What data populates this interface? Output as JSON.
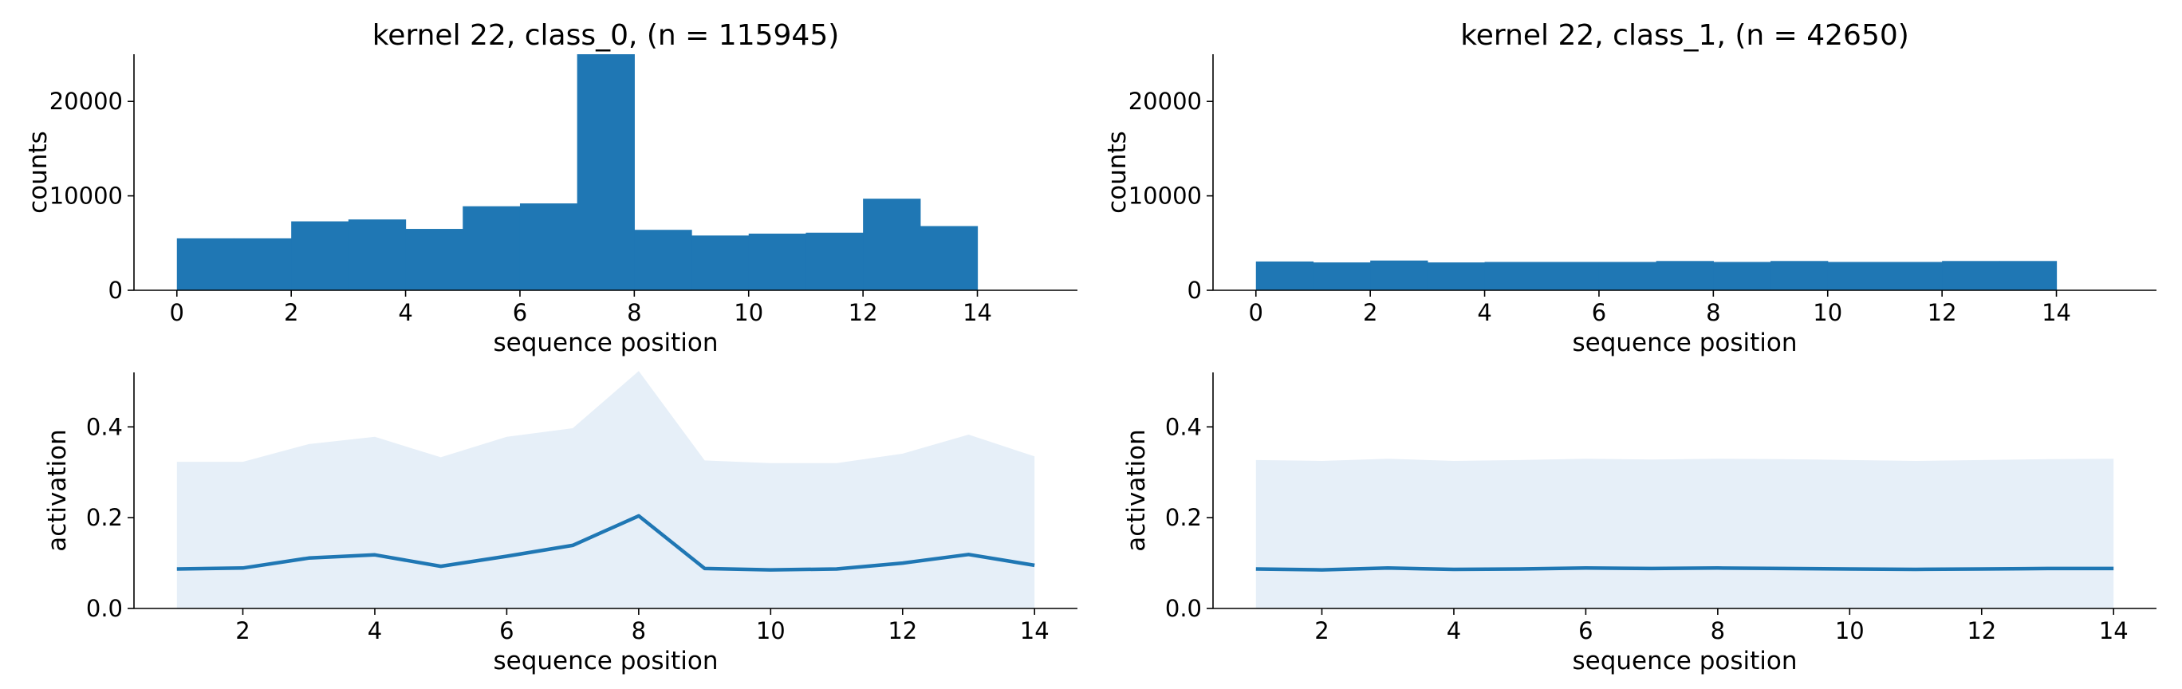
{
  "style": {
    "bar_color": "#1f77b4",
    "line_color": "#1f77b4",
    "band_color": "#e6eff8"
  },
  "chart_data": [
    {
      "type": "bar",
      "title": "kernel 22, class_0, (n = 115945)",
      "xlabel": "sequence position",
      "ylabel": "counts",
      "xlim": [
        -0.75,
        15.75
      ],
      "ylim": [
        0,
        25000
      ],
      "xticks": [
        "0",
        "2",
        "4",
        "6",
        "8",
        "10",
        "12",
        "14"
      ],
      "xtick_values": [
        0,
        2,
        4,
        6,
        8,
        10,
        12,
        14
      ],
      "yticks": [
        "0",
        "10000",
        "20000"
      ],
      "ytick_values": [
        0,
        10000,
        20000
      ],
      "bin_edges": [
        0,
        1,
        2,
        3,
        4,
        5,
        6,
        7,
        8,
        9,
        10,
        11,
        12,
        13,
        14
      ],
      "values": [
        5500,
        5500,
        7300,
        7500,
        6500,
        8900,
        9200,
        25000,
        6400,
        5800,
        6000,
        6100,
        9700,
        6800
      ]
    },
    {
      "type": "bar",
      "title": "kernel 22, class_1, (n = 42650)",
      "xlabel": "sequence position",
      "ylabel": "counts",
      "xlim": [
        -0.75,
        15.75
      ],
      "ylim": [
        0,
        25000
      ],
      "xticks": [
        "0",
        "2",
        "4",
        "6",
        "8",
        "10",
        "12",
        "14"
      ],
      "xtick_values": [
        0,
        2,
        4,
        6,
        8,
        10,
        12,
        14
      ],
      "yticks": [
        "0",
        "10000",
        "20000"
      ],
      "ytick_values": [
        0,
        10000,
        20000
      ],
      "bin_edges": [
        0,
        1,
        2,
        3,
        4,
        5,
        6,
        7,
        8,
        9,
        10,
        11,
        12,
        13,
        14
      ],
      "values": [
        3050,
        2950,
        3150,
        2950,
        3000,
        3000,
        3000,
        3100,
        3000,
        3100,
        3000,
        3000,
        3100,
        3100
      ]
    },
    {
      "type": "area",
      "title": "",
      "xlabel": "sequence position",
      "ylabel": "activation",
      "xlim": [
        0.35,
        14.65
      ],
      "ylim": [
        0,
        0.52
      ],
      "xticks": [
        "2",
        "4",
        "6",
        "8",
        "10",
        "12",
        "14"
      ],
      "xtick_values": [
        2,
        4,
        6,
        8,
        10,
        12,
        14
      ],
      "yticks": [
        "0.0",
        "0.2",
        "0.4"
      ],
      "ytick_values": [
        0,
        0.2,
        0.4
      ],
      "x": [
        1,
        2,
        3,
        4,
        5,
        6,
        7,
        8,
        9,
        10,
        11,
        12,
        13,
        14
      ],
      "series": [
        {
          "values": [
            0.087,
            0.089,
            0.111,
            0.118,
            0.093,
            0.115,
            0.139,
            0.204,
            0.088,
            0.085,
            0.087,
            0.1,
            0.119,
            0.095
          ]
        }
      ],
      "band_lower": [
        0,
        0,
        0,
        0,
        0,
        0,
        0,
        0,
        0,
        0,
        0,
        0,
        0,
        0
      ],
      "band_upper": [
        0.323,
        0.323,
        0.362,
        0.378,
        0.333,
        0.378,
        0.397,
        0.523,
        0.326,
        0.32,
        0.32,
        0.341,
        0.383,
        0.335
      ]
    },
    {
      "type": "area",
      "title": "",
      "xlabel": "sequence position",
      "ylabel": "activation",
      "xlim": [
        0.35,
        14.65
      ],
      "ylim": [
        0,
        0.52
      ],
      "xticks": [
        "2",
        "4",
        "6",
        "8",
        "10",
        "12",
        "14"
      ],
      "xtick_values": [
        2,
        4,
        6,
        8,
        10,
        12,
        14
      ],
      "yticks": [
        "0.0",
        "0.2",
        "0.4"
      ],
      "ytick_values": [
        0,
        0.2,
        0.4
      ],
      "x": [
        1,
        2,
        3,
        4,
        5,
        6,
        7,
        8,
        9,
        10,
        11,
        12,
        13,
        14
      ],
      "series": [
        {
          "values": [
            0.087,
            0.085,
            0.089,
            0.086,
            0.087,
            0.089,
            0.088,
            0.089,
            0.088,
            0.087,
            0.086,
            0.087,
            0.088,
            0.088
          ]
        }
      ],
      "band_lower": [
        0,
        0,
        0,
        0,
        0,
        0,
        0,
        0,
        0,
        0,
        0,
        0,
        0,
        0
      ],
      "band_upper": [
        0.327,
        0.325,
        0.33,
        0.325,
        0.327,
        0.33,
        0.328,
        0.33,
        0.329,
        0.327,
        0.325,
        0.327,
        0.329,
        0.33
      ]
    }
  ]
}
